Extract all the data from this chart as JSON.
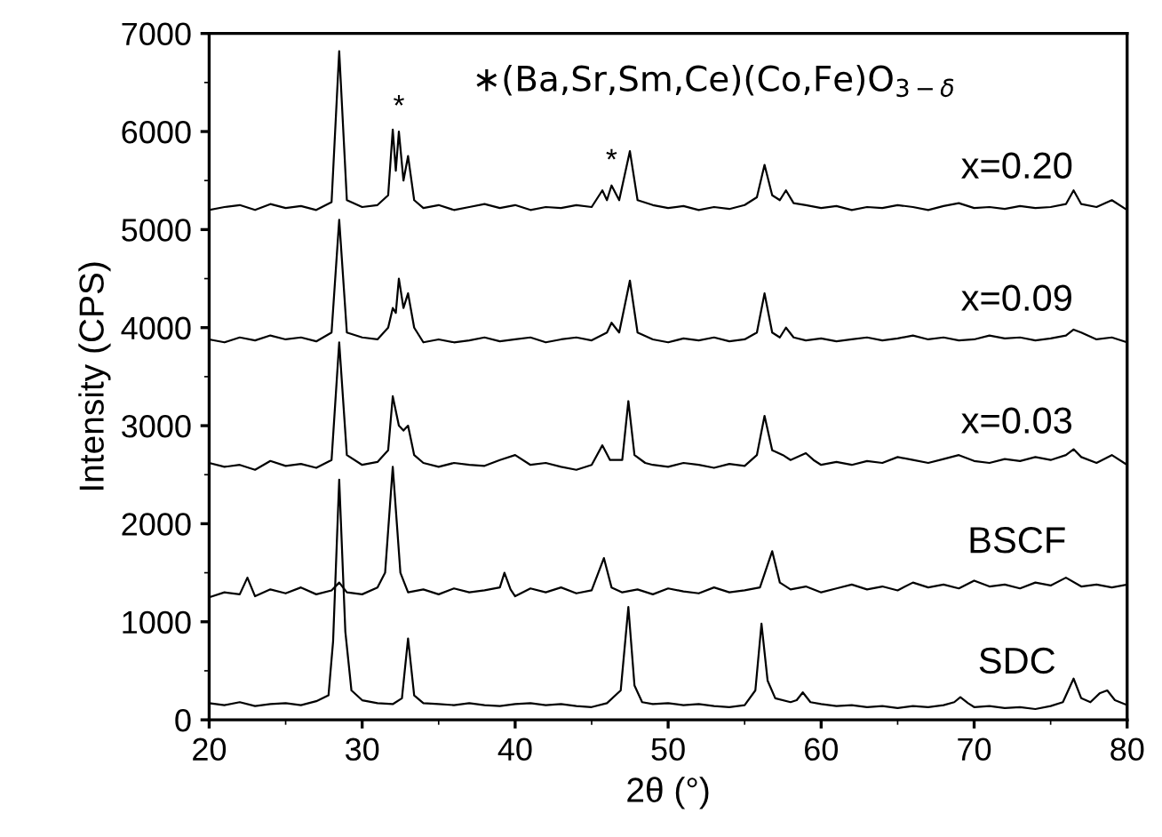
{
  "chart_data": {
    "type": "line",
    "xlabel": "2θ (°)",
    "ylabel": "Intensity (CPS)",
    "xlim": [
      20,
      80
    ],
    "ylim": [
      0,
      7000
    ],
    "xticks": [
      20,
      30,
      40,
      50,
      60,
      70,
      80
    ],
    "yticks": [
      0,
      1000,
      2000,
      3000,
      4000,
      5000,
      6000,
      7000
    ],
    "grid": false,
    "marker": "none",
    "line_style": "solid",
    "annotations": [
      "∗(Ba,Sr,Sm,Ce)(Co,Fe)O$_{3−δ}$",
      {
        "text": "*",
        "x": 32.4,
        "y": 6000
      },
      {
        "text": "*",
        "x": 46.3,
        "y": 5450
      }
    ],
    "series": [
      {
        "name": "SDC",
        "color": "#000000",
        "x": [
          20,
          21,
          22,
          23,
          24,
          25,
          26,
          27,
          27.8,
          28.1,
          28.5,
          28.9,
          29.3,
          30,
          31,
          32,
          32.6,
          33,
          33.4,
          34,
          35,
          36,
          37,
          38,
          39,
          40,
          41,
          42,
          43,
          44,
          45,
          46,
          46.9,
          47.4,
          47.8,
          48.3,
          49,
          50,
          51,
          52,
          53,
          54,
          55,
          55.7,
          56.1,
          56.5,
          57,
          58,
          58.4,
          58.8,
          59.3,
          60,
          61,
          62,
          63,
          64,
          65,
          66,
          67,
          68,
          68.7,
          69.1,
          69.6,
          70,
          71,
          72,
          73,
          74,
          75,
          75.8,
          76.5,
          77,
          77.6,
          78.2,
          78.7,
          79.2,
          80
        ],
        "values": [
          170,
          150,
          180,
          140,
          160,
          170,
          150,
          190,
          250,
          800,
          2450,
          900,
          300,
          200,
          170,
          160,
          220,
          830,
          250,
          170,
          160,
          150,
          170,
          150,
          140,
          160,
          170,
          150,
          160,
          140,
          130,
          170,
          300,
          1150,
          350,
          180,
          160,
          170,
          150,
          160,
          140,
          130,
          150,
          300,
          980,
          400,
          220,
          180,
          200,
          280,
          180,
          160,
          140,
          150,
          130,
          140,
          120,
          140,
          130,
          150,
          180,
          230,
          170,
          130,
          140,
          120,
          130,
          110,
          140,
          180,
          420,
          220,
          180,
          270,
          300,
          200,
          150
        ]
      },
      {
        "name": "BSCF",
        "color": "#000000",
        "x": [
          20,
          21,
          22,
          22.5,
          23,
          24,
          25,
          26,
          27,
          28,
          28.5,
          29,
          30,
          31,
          31.5,
          32,
          32.5,
          33,
          34,
          35,
          36,
          37,
          38,
          39,
          39.3,
          39.7,
          40,
          41,
          42,
          43,
          44,
          45,
          45.8,
          46.3,
          47,
          48,
          49,
          50,
          51,
          52,
          53,
          54,
          55,
          56,
          56.8,
          57.3,
          58,
          59,
          60,
          61,
          62,
          63,
          64,
          65,
          66,
          67,
          68,
          69,
          70,
          71,
          72,
          73,
          74,
          75,
          76,
          77,
          78,
          79,
          80
        ],
        "values": [
          1250,
          1300,
          1280,
          1450,
          1260,
          1330,
          1290,
          1350,
          1280,
          1320,
          1400,
          1300,
          1280,
          1350,
          1500,
          2580,
          1500,
          1300,
          1330,
          1280,
          1340,
          1300,
          1320,
          1350,
          1500,
          1330,
          1260,
          1340,
          1300,
          1350,
          1290,
          1320,
          1650,
          1350,
          1300,
          1330,
          1280,
          1340,
          1310,
          1290,
          1350,
          1300,
          1320,
          1350,
          1720,
          1400,
          1330,
          1360,
          1300,
          1340,
          1380,
          1330,
          1360,
          1320,
          1400,
          1350,
          1380,
          1340,
          1420,
          1360,
          1380,
          1340,
          1400,
          1370,
          1450,
          1360,
          1380,
          1350,
          1380
        ]
      },
      {
        "name": "x=0.03",
        "color": "#000000",
        "x": [
          20,
          21,
          22,
          23,
          24,
          25,
          26,
          27,
          28,
          28.5,
          29,
          30,
          31,
          31.7,
          32,
          32.4,
          32.7,
          33,
          33.4,
          34,
          35,
          36,
          37,
          38,
          39,
          40,
          41,
          42,
          43,
          44,
          45,
          45.7,
          46.2,
          47,
          47.4,
          47.8,
          48.5,
          49,
          50,
          51,
          52,
          53,
          54,
          55,
          55.8,
          56.3,
          56.8,
          57.5,
          58,
          59,
          59.5,
          60,
          61,
          62,
          63,
          64,
          65,
          66,
          67,
          68,
          69,
          70,
          71,
          72,
          73,
          74,
          75,
          76,
          76.5,
          77,
          78,
          79,
          80
        ],
        "values": [
          2620,
          2580,
          2600,
          2550,
          2640,
          2590,
          2610,
          2570,
          2650,
          3850,
          2700,
          2600,
          2630,
          2750,
          3300,
          3000,
          2950,
          3000,
          2700,
          2620,
          2580,
          2620,
          2600,
          2590,
          2650,
          2700,
          2600,
          2620,
          2580,
          2550,
          2600,
          2800,
          2650,
          2650,
          3250,
          2700,
          2620,
          2600,
          2580,
          2620,
          2600,
          2570,
          2610,
          2590,
          2700,
          3100,
          2750,
          2700,
          2650,
          2720,
          2650,
          2600,
          2630,
          2600,
          2640,
          2620,
          2680,
          2650,
          2620,
          2660,
          2700,
          2640,
          2620,
          2660,
          2640,
          2680,
          2650,
          2700,
          2760,
          2680,
          2620,
          2700,
          2600
        ]
      },
      {
        "name": "x=0.09",
        "color": "#000000",
        "x": [
          20,
          21,
          22,
          23,
          24,
          25,
          26,
          27,
          28,
          28.5,
          29,
          30,
          31,
          31.7,
          32,
          32.2,
          32.4,
          32.7,
          33,
          33.4,
          34,
          35,
          36,
          37,
          38,
          39,
          40,
          41,
          42,
          43,
          44,
          45,
          46,
          46.3,
          46.8,
          47.5,
          48,
          49,
          50,
          51,
          52,
          53,
          54,
          55,
          55.8,
          56.3,
          56.8,
          57.3,
          57.7,
          58.2,
          59,
          60,
          61,
          62,
          63,
          64,
          65,
          66,
          67,
          68,
          69,
          70,
          71,
          72,
          73,
          74,
          75,
          76,
          76.5,
          77,
          78,
          79,
          80
        ],
        "values": [
          3880,
          3850,
          3900,
          3870,
          3920,
          3880,
          3900,
          3860,
          3950,
          5100,
          3950,
          3900,
          3880,
          4000,
          4200,
          4150,
          4500,
          4200,
          4350,
          4000,
          3850,
          3880,
          3850,
          3870,
          3900,
          3860,
          3880,
          3900,
          3850,
          3880,
          3900,
          3870,
          3950,
          4050,
          3950,
          4480,
          3950,
          3880,
          3850,
          3890,
          3870,
          3900,
          3860,
          3880,
          3950,
          4350,
          3950,
          3900,
          4000,
          3900,
          3870,
          3890,
          3860,
          3880,
          3900,
          3870,
          3890,
          3920,
          3880,
          3900,
          3870,
          3880,
          3920,
          3890,
          3900,
          3870,
          3890,
          3920,
          3980,
          3950,
          3880,
          3900,
          3850
        ]
      },
      {
        "name": "x=0.20",
        "color": "#000000",
        "x": [
          20,
          21,
          22,
          23,
          24,
          25,
          26,
          27,
          28,
          28.5,
          29,
          30,
          31,
          31.7,
          32,
          32.2,
          32.4,
          32.7,
          33,
          33.4,
          34,
          35,
          36,
          37,
          38,
          39,
          40,
          41,
          42,
          43,
          44,
          45,
          45.7,
          46,
          46.3,
          46.8,
          47.5,
          48,
          49,
          50,
          51,
          52,
          53,
          54,
          55,
          55.8,
          56.3,
          56.8,
          57.3,
          57.7,
          58.2,
          59,
          60,
          61,
          62,
          63,
          64,
          65,
          66,
          67,
          68,
          69,
          70,
          71,
          72,
          73,
          74,
          75,
          76,
          76.5,
          77,
          78,
          79,
          80
        ],
        "values": [
          5200,
          5230,
          5250,
          5200,
          5260,
          5220,
          5240,
          5200,
          5280,
          6820,
          5300,
          5230,
          5250,
          5350,
          6020,
          5600,
          6000,
          5500,
          5750,
          5300,
          5220,
          5250,
          5200,
          5230,
          5260,
          5220,
          5250,
          5200,
          5230,
          5220,
          5250,
          5230,
          5400,
          5300,
          5450,
          5300,
          5800,
          5300,
          5250,
          5220,
          5240,
          5200,
          5230,
          5210,
          5250,
          5330,
          5660,
          5350,
          5300,
          5400,
          5270,
          5250,
          5220,
          5240,
          5200,
          5230,
          5220,
          5250,
          5230,
          5200,
          5240,
          5270,
          5220,
          5230,
          5210,
          5240,
          5220,
          5230,
          5260,
          5400,
          5260,
          5230,
          5300,
          5200
        ]
      }
    ]
  }
}
